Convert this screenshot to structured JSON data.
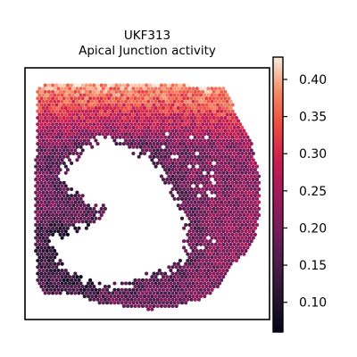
{
  "chart_data": {
    "type": "spatial-hexbin",
    "title_lines": [
      "UKF313",
      "Apical Junction activity"
    ],
    "colormap": "rocket",
    "colorbar": {
      "min": 0.06,
      "max": 0.43,
      "ticks": [
        0.1,
        0.15,
        0.2,
        0.25,
        0.3,
        0.35,
        0.4
      ],
      "tick_labels": [
        "0.10",
        "0.15",
        "0.20",
        "0.25",
        "0.30",
        "0.35",
        "0.40"
      ]
    },
    "axes_visible": false
  }
}
